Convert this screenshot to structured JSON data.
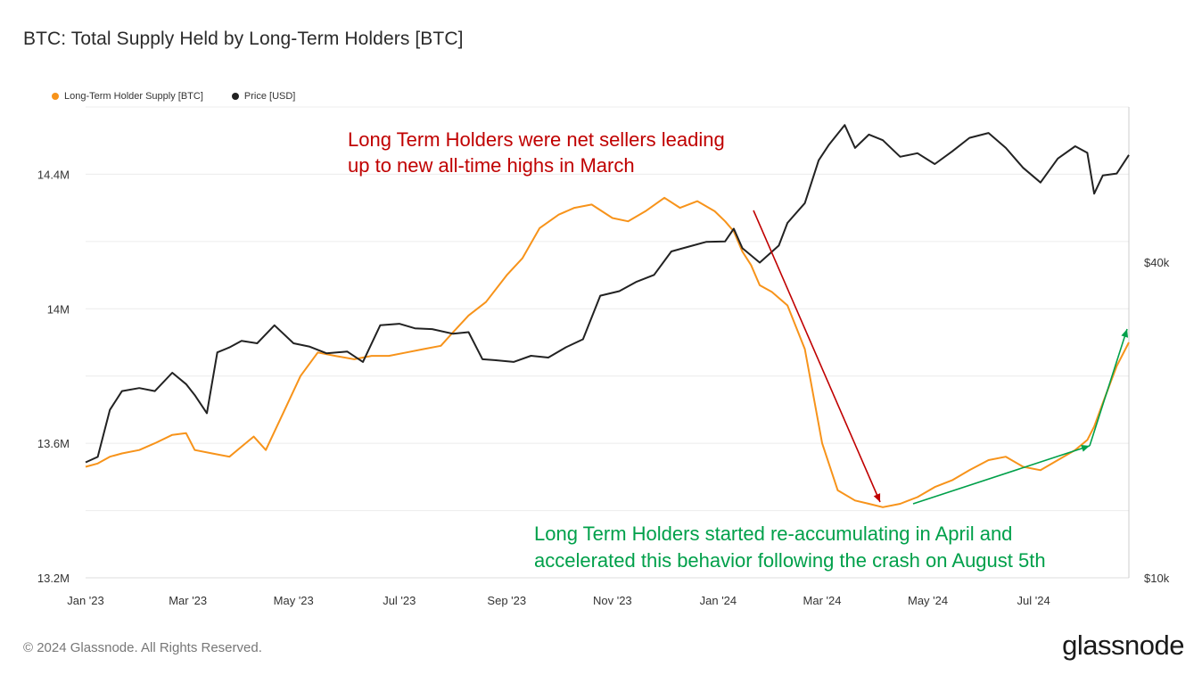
{
  "header": {
    "title": "BTC: Total Supply Held by Long-Term Holders [BTC]"
  },
  "legend": [
    {
      "label": "Long-Term Holder Supply [BTC]",
      "color": "#f7931a"
    },
    {
      "label": "Price [USD]",
      "color": "#222222"
    }
  ],
  "annotations": {
    "sellers": [
      "Long Term Holders were net sellers leading",
      "up to new all-time highs in March"
    ],
    "accumulating": [
      "Long Term Holders started re-accumulating in April and",
      "accelerated this behavior following the crash on August 5th"
    ],
    "sellers_color": "#c00000",
    "accumulating_color": "#00a04a"
  },
  "footer": {
    "copyright": "© 2024 Glassnode. All Rights Reserved.",
    "brand": "glassnode"
  },
  "chart_data": {
    "type": "line",
    "x_ticks": [
      "Jan '23",
      "Mar '23",
      "May '23",
      "Jul '23",
      "Sep '23",
      "Nov '23",
      "Jan '24",
      "Mar '24",
      "May '24",
      "Jul '24"
    ],
    "y_left_ticks": [
      "13.2M",
      "13.6M",
      "14M",
      "14.4M"
    ],
    "y_left_tick_values": [
      13200000,
      13600000,
      14000000,
      14400000
    ],
    "y_left_range": [
      13200000,
      14600000
    ],
    "y_right_ticks": [
      "$10k",
      "$40k"
    ],
    "y_right_tick_values": [
      10000,
      40000
    ],
    "y_right_scale": "log",
    "y_right_range": [
      10000,
      79000
    ],
    "legend_position": "top-left",
    "grid": true,
    "series": [
      {
        "name": "Long-Term Holder Supply [BTC]",
        "axis": "left",
        "color": "#f7931a",
        "x": [
          "2023-01-01",
          "2023-01-08",
          "2023-01-15",
          "2023-01-22",
          "2023-02-01",
          "2023-02-10",
          "2023-02-20",
          "2023-02-28",
          "2023-03-05",
          "2023-03-15",
          "2023-03-25",
          "2023-04-01",
          "2023-04-08",
          "2023-04-15",
          "2023-04-25",
          "2023-05-05",
          "2023-05-15",
          "2023-05-25",
          "2023-06-05",
          "2023-06-15",
          "2023-06-25",
          "2023-07-05",
          "2023-07-15",
          "2023-07-25",
          "2023-08-01",
          "2023-08-10",
          "2023-08-20",
          "2023-09-01",
          "2023-09-10",
          "2023-09-20",
          "2023-10-01",
          "2023-10-10",
          "2023-10-20",
          "2023-11-01",
          "2023-11-10",
          "2023-11-20",
          "2023-12-01",
          "2023-12-10",
          "2023-12-20",
          "2023-12-30",
          "2024-01-05",
          "2024-01-10",
          "2024-01-15",
          "2024-01-20",
          "2024-01-25",
          "2024-02-01",
          "2024-02-10",
          "2024-02-20",
          "2024-03-01",
          "2024-03-10",
          "2024-03-20",
          "2024-03-28",
          "2024-04-05",
          "2024-04-15",
          "2024-04-25",
          "2024-05-05",
          "2024-05-15",
          "2024-05-25",
          "2024-06-05",
          "2024-06-15",
          "2024-06-25",
          "2024-07-05",
          "2024-07-15",
          "2024-07-25",
          "2024-08-01",
          "2024-08-05",
          "2024-08-10",
          "2024-08-18",
          "2024-08-25"
        ],
        "values": [
          13530000,
          13540000,
          13560000,
          13570000,
          13580000,
          13600000,
          13625000,
          13630000,
          13580000,
          13570000,
          13560000,
          13590000,
          13620000,
          13580000,
          13690000,
          13800000,
          13870000,
          13860000,
          13850000,
          13860000,
          13860000,
          13870000,
          13880000,
          13890000,
          13930000,
          13980000,
          14020000,
          14100000,
          14150000,
          14240000,
          14280000,
          14300000,
          14310000,
          14270000,
          14260000,
          14290000,
          14330000,
          14300000,
          14320000,
          14290000,
          14260000,
          14230000,
          14170000,
          14130000,
          14070000,
          14050000,
          14010000,
          13880000,
          13600000,
          13460000,
          13430000,
          13420000,
          13410000,
          13420000,
          13440000,
          13470000,
          13490000,
          13520000,
          13550000,
          13560000,
          13530000,
          13520000,
          13550000,
          13580000,
          13610000,
          13650000,
          13720000,
          13830000,
          13900000
        ]
      },
      {
        "name": "Price [USD]",
        "axis": "right",
        "color": "#222222",
        "x": [
          "2023-01-01",
          "2023-01-08",
          "2023-01-15",
          "2023-01-22",
          "2023-02-01",
          "2023-02-10",
          "2023-02-20",
          "2023-02-28",
          "2023-03-05",
          "2023-03-12",
          "2023-03-18",
          "2023-03-25",
          "2023-04-01",
          "2023-04-10",
          "2023-04-20",
          "2023-05-01",
          "2023-05-10",
          "2023-05-20",
          "2023-06-01",
          "2023-06-10",
          "2023-06-20",
          "2023-07-01",
          "2023-07-10",
          "2023-07-20",
          "2023-08-01",
          "2023-08-10",
          "2023-08-18",
          "2023-08-25",
          "2023-09-05",
          "2023-09-15",
          "2023-09-25",
          "2023-10-05",
          "2023-10-15",
          "2023-10-25",
          "2023-11-05",
          "2023-11-15",
          "2023-11-25",
          "2023-12-05",
          "2023-12-15",
          "2023-12-25",
          "2024-01-05",
          "2024-01-10",
          "2024-01-15",
          "2024-01-25",
          "2024-02-05",
          "2024-02-10",
          "2024-02-20",
          "2024-02-28",
          "2024-03-05",
          "2024-03-14",
          "2024-03-20",
          "2024-03-28",
          "2024-04-05",
          "2024-04-15",
          "2024-04-25",
          "2024-05-05",
          "2024-05-15",
          "2024-05-25",
          "2024-06-05",
          "2024-06-15",
          "2024-06-25",
          "2024-07-05",
          "2024-07-15",
          "2024-07-25",
          "2024-08-01",
          "2024-08-05",
          "2024-08-10",
          "2024-08-18",
          "2024-08-25"
        ],
        "values": [
          16600,
          17000,
          20900,
          22700,
          23000,
          22700,
          24600,
          23400,
          22300,
          20600,
          26900,
          27500,
          28300,
          28000,
          30300,
          28000,
          27600,
          26800,
          27000,
          25800,
          30300,
          30500,
          29900,
          29800,
          29200,
          29400,
          26100,
          26000,
          25800,
          26500,
          26300,
          27500,
          28500,
          34500,
          35200,
          36700,
          37800,
          41900,
          42800,
          43700,
          43800,
          46300,
          42500,
          39900,
          43000,
          47500,
          51800,
          62500,
          67000,
          73000,
          66000,
          70000,
          68300,
          63500,
          64500,
          61500,
          65000,
          69000,
          70500,
          66000,
          60500,
          56700,
          63000,
          66500,
          64600,
          54000,
          58500,
          59000,
          64000
        ]
      }
    ]
  }
}
